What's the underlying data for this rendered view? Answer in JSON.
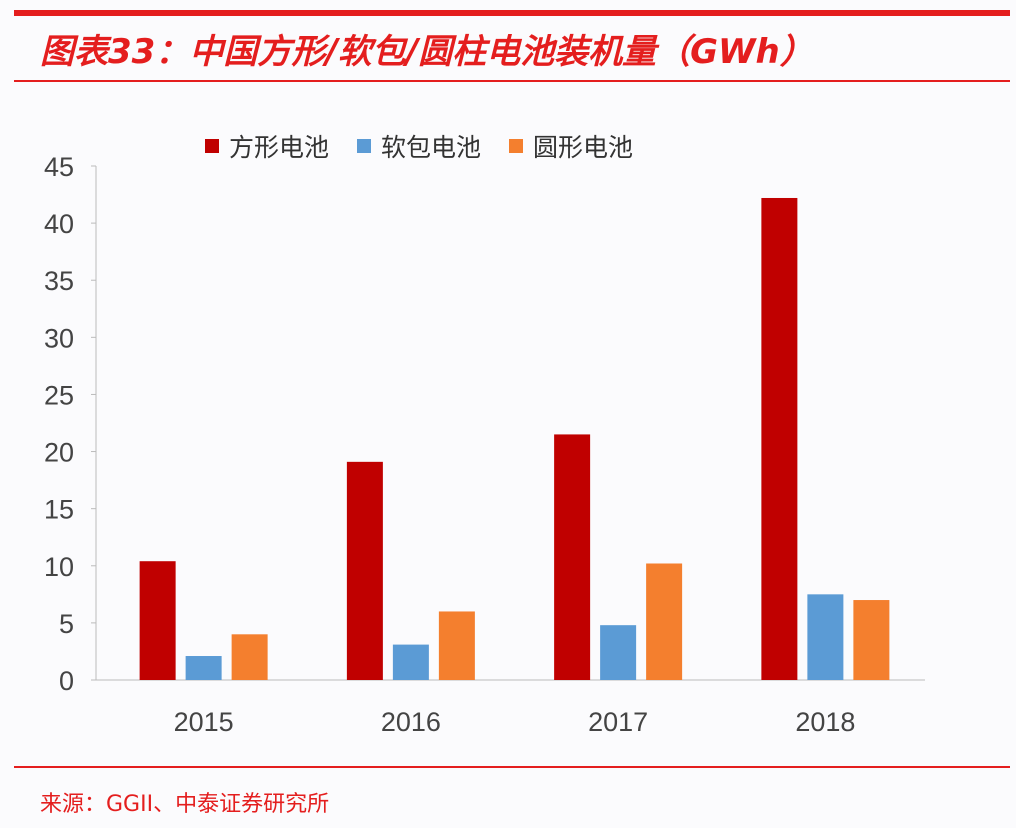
{
  "title": "图表33：中国方形/软包/圆柱电池装机量（GWh）",
  "source": "来源：GGII、中泰证券研究所",
  "colors": {
    "accent": "#e41e1e"
  },
  "chart_data": {
    "type": "bar",
    "categories": [
      "2015",
      "2016",
      "2017",
      "2018"
    ],
    "series": [
      {
        "name": "方形电池",
        "color": "#c00000",
        "values": [
          10.4,
          19.1,
          21.5,
          42.2
        ]
      },
      {
        "name": "软包电池",
        "color": "#5b9bd5",
        "values": [
          2.1,
          3.1,
          4.8,
          7.5
        ]
      },
      {
        "name": "圆形电池",
        "color": "#f47f2e",
        "values": [
          4.0,
          6.0,
          10.2,
          7.0
        ]
      }
    ],
    "ylim": [
      0,
      45
    ],
    "yticks": [
      "0",
      "5",
      "10",
      "15",
      "20",
      "25",
      "30",
      "35",
      "40",
      "45"
    ],
    "grid": false,
    "legend": "top"
  }
}
